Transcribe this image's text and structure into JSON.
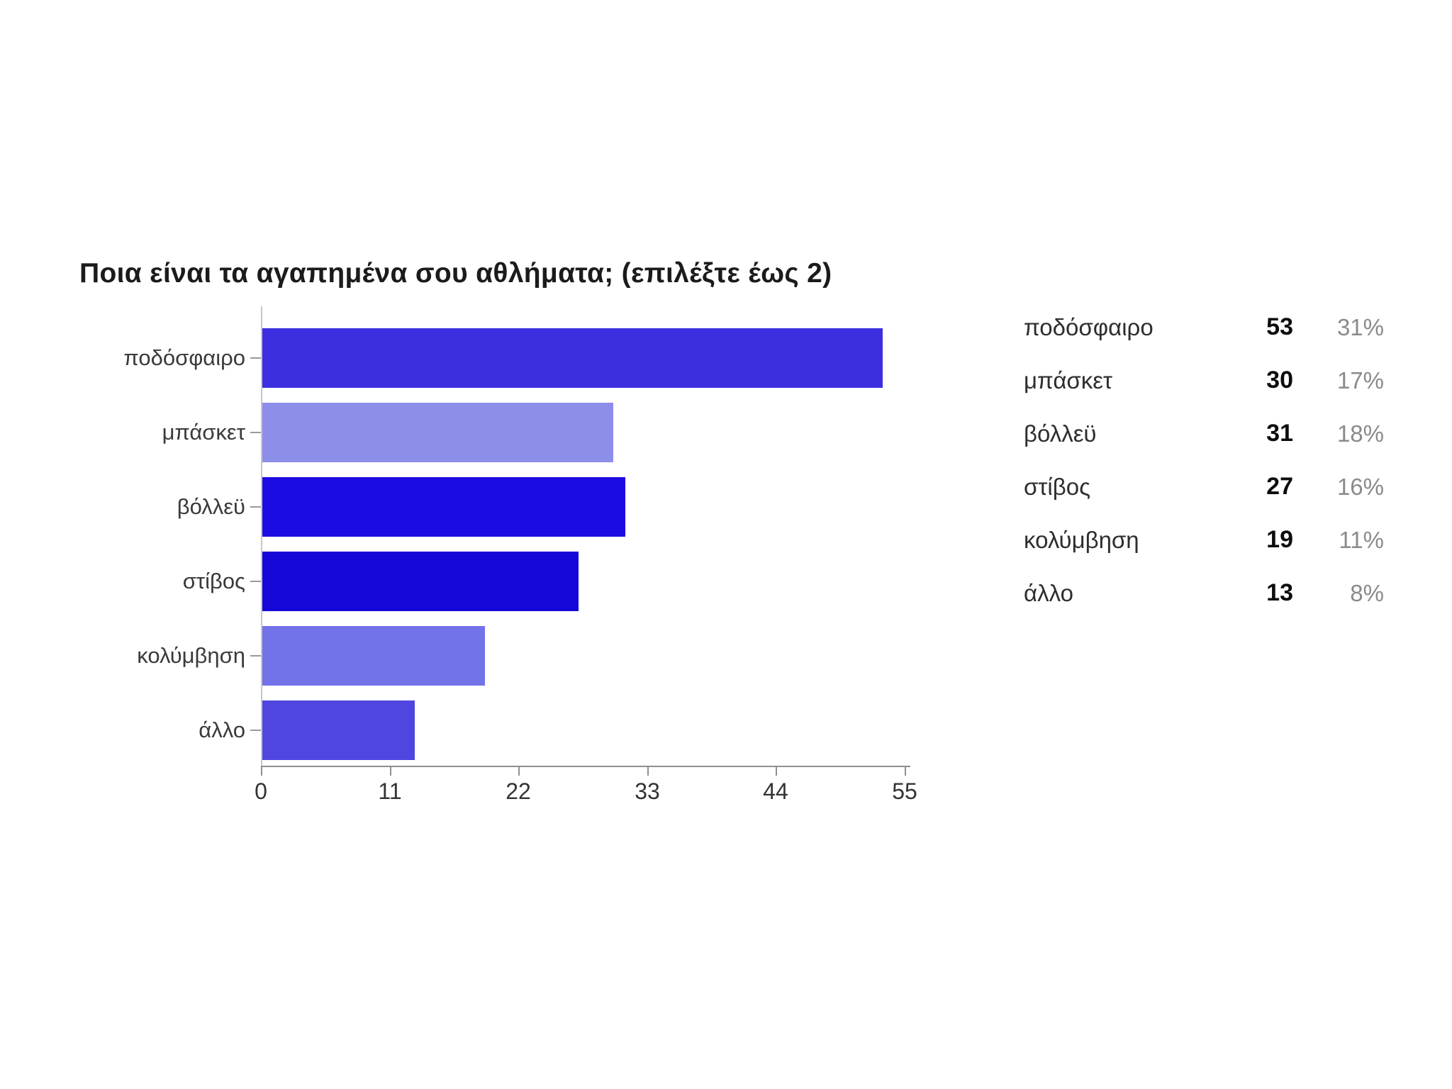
{
  "title": "Ποια είναι τα αγαπημένα σου αθλήματα; (επιλέξτε έως 2)",
  "chart_data": {
    "type": "bar",
    "orientation": "horizontal",
    "title": "Ποια είναι τα αγαπημένα σου αθλήματα; (επιλέξτε έως 2)",
    "categories": [
      "ποδόσφαιρο",
      "μπάσκετ",
      "βόλλεϋ",
      "στίβος",
      "κολύμβηση",
      "άλλο"
    ],
    "values": [
      53,
      30,
      31,
      27,
      19,
      13
    ],
    "percents": [
      "31%",
      "17%",
      "18%",
      "16%",
      "11%",
      "8%"
    ],
    "bar_colors": [
      "#3b2ede",
      "#8d8dea",
      "#1d0ce2",
      "#1607d8",
      "#7272e9",
      "#4f46e0"
    ],
    "xlim": [
      0,
      55
    ],
    "x_ticks": [
      "0",
      "11",
      "22",
      "33",
      "44",
      "55"
    ],
    "grid": "off",
    "axis_color": "#8f8f8f",
    "label_color": "#3a3a3a",
    "legend_position": "right"
  },
  "legend": {
    "rows": [
      {
        "label": "ποδόσφαιρο",
        "count": "53",
        "percent": "31%"
      },
      {
        "label": "μπάσκετ",
        "count": "30",
        "percent": "17%"
      },
      {
        "label": "βόλλεϋ",
        "count": "31",
        "percent": "18%"
      },
      {
        "label": "στίβος",
        "count": "27",
        "percent": "16%"
      },
      {
        "label": "κολύμβηση",
        "count": "19",
        "percent": "11%"
      },
      {
        "label": "άλλο",
        "count": "13",
        "percent": "8%"
      }
    ]
  }
}
